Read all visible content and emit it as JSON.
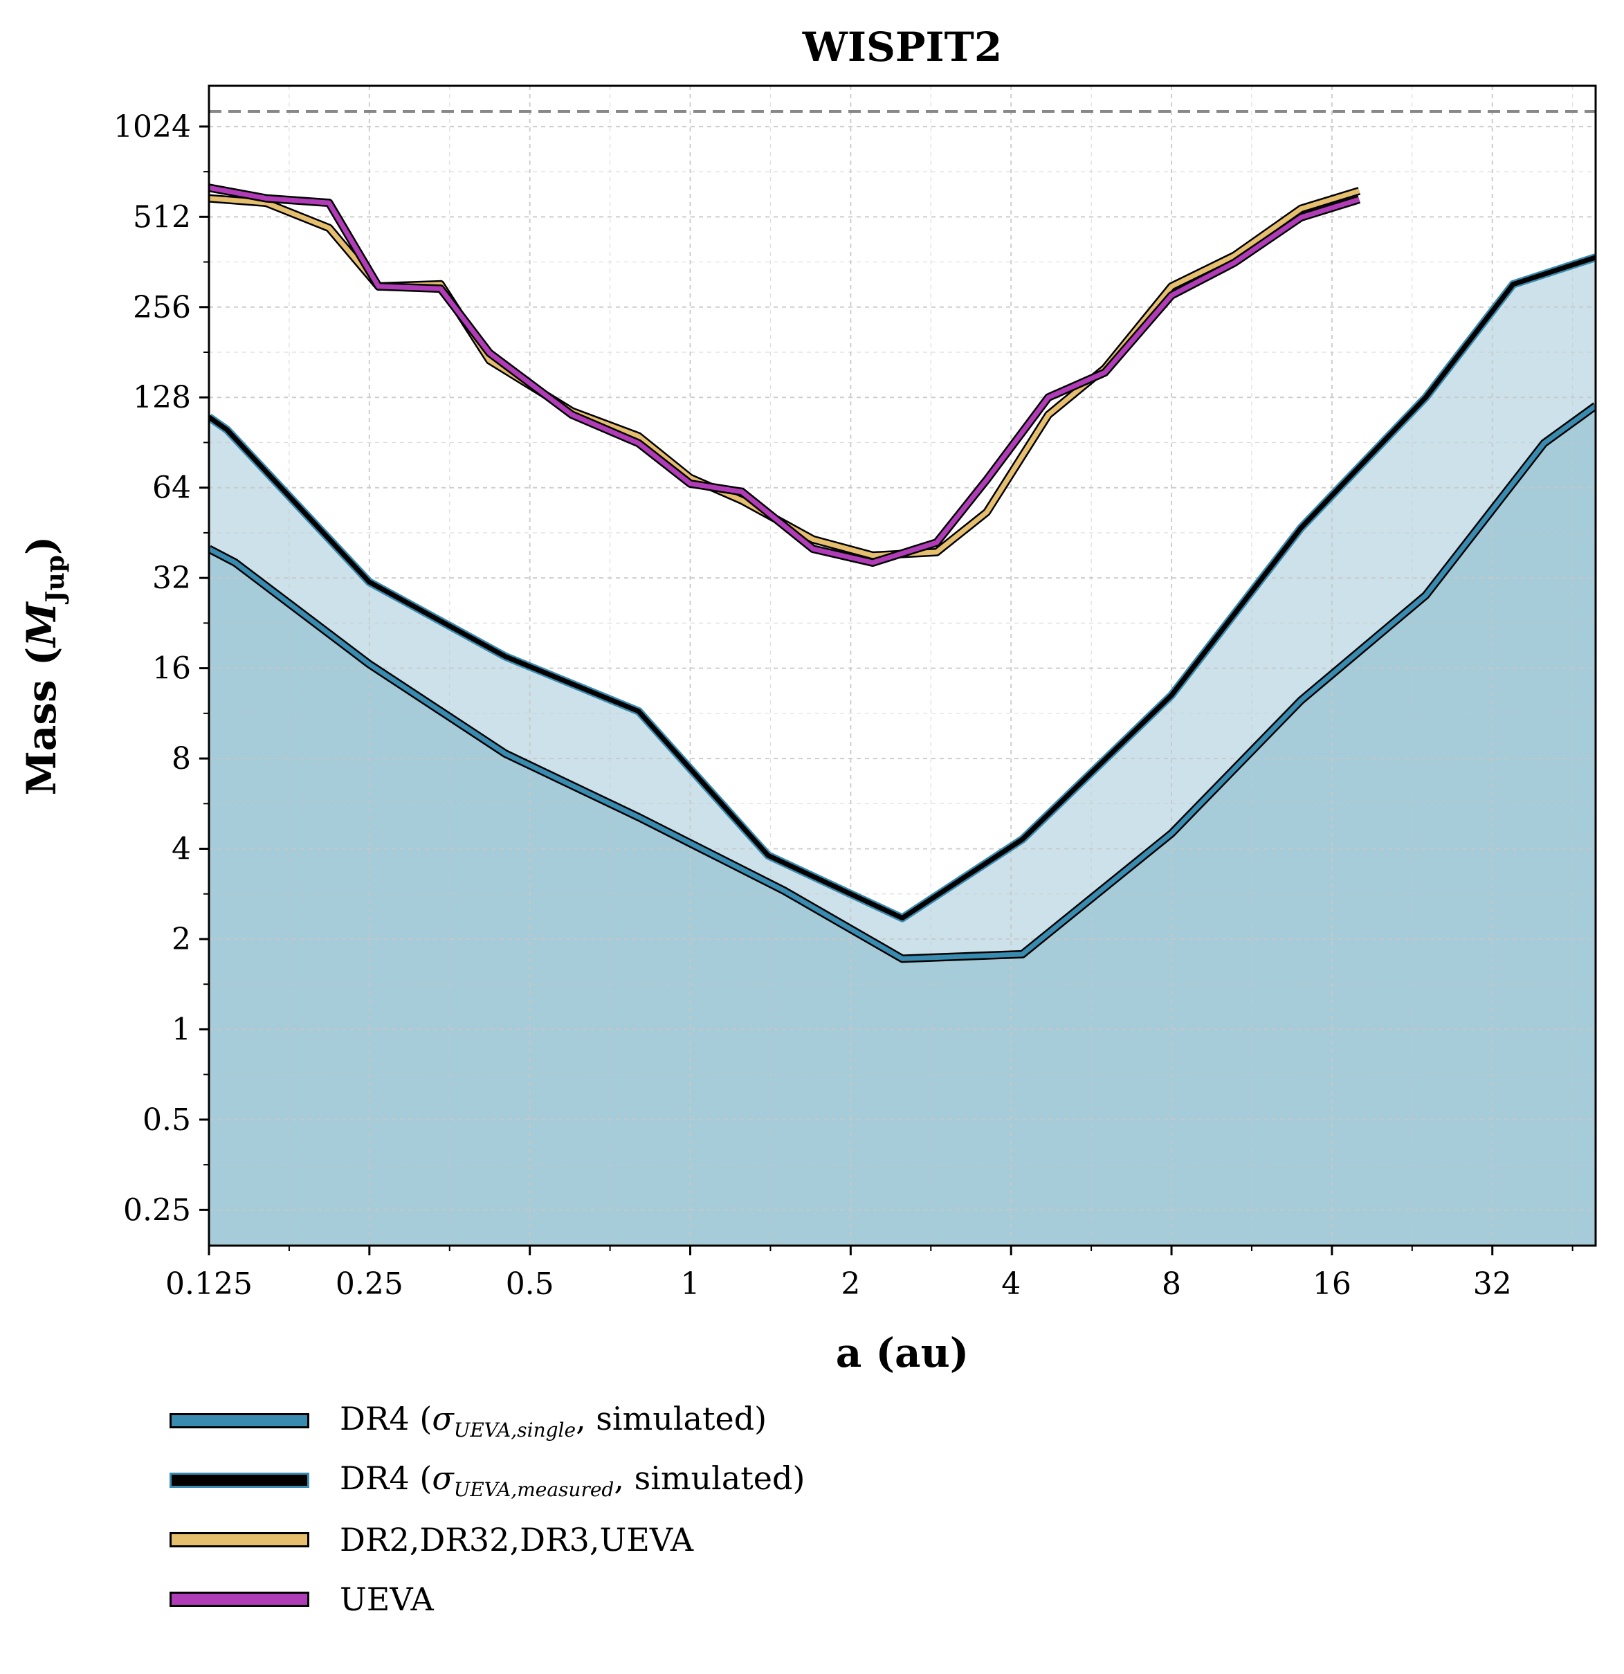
{
  "chart_data": {
    "type": "line",
    "title": "WISPIT2",
    "xlabel": "a (au)",
    "ylabel": "Mass (M_Jup)",
    "ylabel_main": "Mass (",
    "ylabel_sym": "M",
    "ylabel_sub": "Jup",
    "ylabel_close": ")",
    "x_scale": "log2",
    "y_scale": "log2",
    "xlim": [
      0.125,
      50
    ],
    "ylim": [
      0.19,
      1400
    ],
    "x_ticks": [
      0.125,
      0.25,
      0.5,
      1,
      2,
      4,
      8,
      16,
      32
    ],
    "x_tick_labels": [
      "0.125",
      "0.25",
      "0.5",
      "1",
      "2",
      "4",
      "8",
      "16",
      "32"
    ],
    "y_ticks": [
      0.25,
      0.5,
      1,
      2,
      4,
      8,
      16,
      32,
      64,
      128,
      256,
      512,
      1024
    ],
    "y_tick_labels": [
      "0.25",
      "0.5",
      "1",
      "2",
      "4",
      "8",
      "16",
      "32",
      "64",
      "128",
      "256",
      "512",
      "1024"
    ],
    "grid": true,
    "reference_line": {
      "y": 1150,
      "style": "dashed",
      "color": "#888888"
    },
    "legend_position": "below-left",
    "colors": {
      "dr4_single_fill": "#a6cbd9",
      "dr4_measured_fill": "#cce1e9",
      "dr4_line": "#3a8bb0",
      "dr4_measured_line": "#000000",
      "dr2_line": "#e5be6e",
      "ueva_line": "#b03cb7",
      "grid": "#c8c8c8"
    },
    "series": [
      {
        "name": "DR4 (σUEVA,single, simulated)",
        "label_main": "DR4 (",
        "label_sym": "σ",
        "label_sub": "UEVA,single",
        "label_tail": ", simulated)",
        "color": "#3a8bb0",
        "x": [
          0.125,
          0.14,
          0.25,
          0.45,
          0.8,
          1.5,
          2.5,
          4.2,
          8,
          14,
          24,
          40,
          50
        ],
        "y": [
          40,
          36,
          16.5,
          8.3,
          5.1,
          2.9,
          1.72,
          1.78,
          4.5,
          12.5,
          28,
          90,
          120
        ]
      },
      {
        "name": "DR4 (σUEVA,measured, simulated)",
        "label_main": "DR4 (",
        "label_sym": "σ",
        "label_sub": "UEVA,measured",
        "label_tail": ", simulated)",
        "color": "#000000",
        "x": [
          0.125,
          0.135,
          0.25,
          0.45,
          0.8,
          1.4,
          2.5,
          4.2,
          8,
          14,
          24,
          35,
          50
        ],
        "y": [
          110,
          100,
          31,
          17.5,
          11.5,
          3.8,
          2.35,
          4.3,
          13,
          47,
          128,
          305,
          375
        ]
      },
      {
        "name": "DR2,DR32,DR3,UEVA",
        "label": "DR2,DR32,DR3,UEVA",
        "color": "#e5be6e",
        "x": [
          0.125,
          0.16,
          0.21,
          0.26,
          0.34,
          0.42,
          0.6,
          0.8,
          1.0,
          1.25,
          1.7,
          2.2,
          2.9,
          3.6,
          4.7,
          6.0,
          8.0,
          10.5,
          14.0,
          18.0
        ],
        "y": [
          590,
          570,
          470,
          300,
          305,
          170,
          115,
          95,
          69,
          58,
          43,
          38,
          39,
          53,
          112,
          160,
          300,
          380,
          545,
          625
        ]
      },
      {
        "name": "UEVA",
        "label": "UEVA",
        "color": "#b03cb7",
        "x": [
          0.125,
          0.16,
          0.21,
          0.26,
          0.34,
          0.42,
          0.6,
          0.8,
          1.0,
          1.25,
          1.7,
          2.2,
          2.9,
          3.6,
          4.7,
          6.0,
          8.0,
          10.5,
          14.0,
          18.0
        ],
        "y": [
          640,
          590,
          570,
          300,
          295,
          180,
          112,
          90,
          66,
          62,
          40,
          36,
          42,
          68,
          128,
          155,
          280,
          360,
          510,
          585
        ]
      }
    ]
  }
}
